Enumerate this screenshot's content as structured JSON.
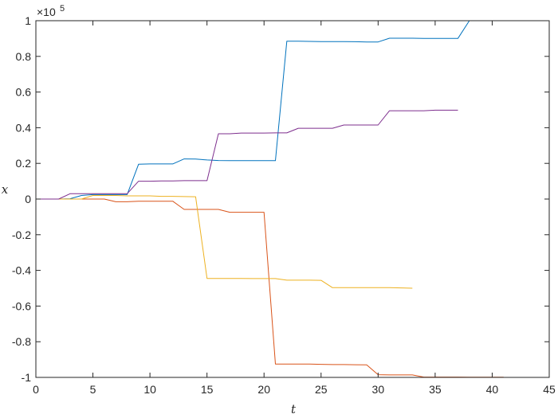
{
  "chart_data": {
    "type": "line",
    "title": "",
    "xlabel": "t",
    "ylabel": "x",
    "exponent_base": "×10",
    "exponent_power": "5",
    "xlim": [
      0,
      45
    ],
    "ylim": [
      -1,
      1
    ],
    "xticks": [
      0,
      5,
      10,
      15,
      20,
      25,
      30,
      35,
      40,
      45
    ],
    "yticks": [
      -1,
      -0.8,
      -0.6,
      -0.4,
      -0.2,
      0,
      0.2,
      0.4,
      0.6,
      0.8,
      1
    ],
    "ytick_labels": [
      "-1",
      "-0.8",
      "-0.6",
      "-0.4",
      "-0.2",
      "0",
      "0.2",
      "0.4",
      "0.6",
      "0.8",
      "1"
    ],
    "grid": false,
    "box": true,
    "series": [
      {
        "color": "#0072BD",
        "x": [
          0,
          2,
          3,
          4,
          5,
          6,
          7,
          8,
          9,
          10,
          11,
          12,
          13,
          14,
          15,
          16,
          17,
          18,
          19,
          20,
          21,
          22,
          23,
          24,
          25,
          26,
          27,
          28,
          29,
          30,
          31,
          32,
          33,
          34,
          35,
          36,
          37,
          38,
          39,
          40,
          41,
          42,
          43,
          44,
          45
        ],
        "y": [
          0,
          0,
          0.002,
          0.02,
          0.025,
          0.025,
          0.025,
          0.025,
          0.195,
          0.197,
          0.197,
          0.197,
          0.225,
          0.224,
          0.219,
          0.216,
          0.215,
          0.215,
          0.215,
          0.215,
          0.215,
          0.885,
          0.885,
          0.884,
          0.883,
          0.883,
          0.883,
          0.882,
          0.881,
          0.881,
          0.902,
          0.902,
          0.902,
          0.901,
          0.901,
          0.901,
          0.901,
          1.0,
          1.0,
          1.0,
          1.0,
          1.0,
          1.0,
          1.0,
          1.0
        ]
      },
      {
        "color": "#D95319",
        "x": [
          0,
          2,
          3,
          4,
          5,
          6,
          7,
          8,
          9,
          10,
          11,
          12,
          13,
          14,
          15,
          16,
          17,
          18,
          19,
          20,
          21,
          22,
          23,
          24,
          25,
          26,
          27,
          28,
          29,
          30,
          31,
          32,
          33,
          34,
          35,
          36,
          37,
          38,
          39,
          40,
          41
        ],
        "y": [
          0,
          0,
          0,
          0,
          0,
          0,
          -0.015,
          -0.015,
          -0.012,
          -0.012,
          -0.012,
          -0.012,
          -0.058,
          -0.058,
          -0.058,
          -0.058,
          -0.074,
          -0.074,
          -0.074,
          -0.074,
          -0.925,
          -0.925,
          -0.925,
          -0.925,
          -0.927,
          -0.928,
          -0.928,
          -0.929,
          -0.93,
          -0.985,
          -0.986,
          -0.986,
          -0.986,
          -0.998,
          -0.998,
          -0.998,
          -0.998,
          -0.999,
          -0.999,
          -0.999,
          -0.999
        ]
      },
      {
        "color": "#EDB120",
        "x": [
          0,
          2,
          3,
          4,
          5,
          6,
          7,
          8,
          9,
          10,
          11,
          12,
          13,
          14,
          15,
          16,
          17,
          18,
          19,
          20,
          21,
          22,
          23,
          24,
          25,
          26,
          27,
          28,
          29,
          30,
          31,
          32,
          33
        ],
        "y": [
          0,
          0,
          0,
          0,
          0.02,
          0.02,
          0.02,
          0.018,
          0.018,
          0.018,
          0.015,
          0.015,
          0.014,
          0.013,
          -0.445,
          -0.445,
          -0.445,
          -0.445,
          -0.446,
          -0.446,
          -0.446,
          -0.455,
          -0.455,
          -0.455,
          -0.456,
          -0.497,
          -0.497,
          -0.497,
          -0.497,
          -0.497,
          -0.497,
          -0.498,
          -0.5
        ]
      },
      {
        "color": "#7E2F8E",
        "x": [
          0,
          2,
          3,
          4,
          5,
          6,
          7,
          8,
          9,
          10,
          11,
          12,
          13,
          14,
          15,
          16,
          17,
          18,
          19,
          20,
          21,
          22,
          23,
          24,
          25,
          26,
          27,
          28,
          29,
          30,
          31,
          32,
          33,
          34,
          35,
          36,
          37
        ],
        "y": [
          0,
          0,
          0.03,
          0.03,
          0.03,
          0.03,
          0.03,
          0.03,
          0.1,
          0.1,
          0.102,
          0.102,
          0.103,
          0.103,
          0.103,
          0.366,
          0.366,
          0.37,
          0.37,
          0.37,
          0.371,
          0.371,
          0.397,
          0.397,
          0.397,
          0.397,
          0.415,
          0.415,
          0.415,
          0.415,
          0.495,
          0.495,
          0.495,
          0.495,
          0.498,
          0.498,
          0.498
        ]
      }
    ]
  }
}
